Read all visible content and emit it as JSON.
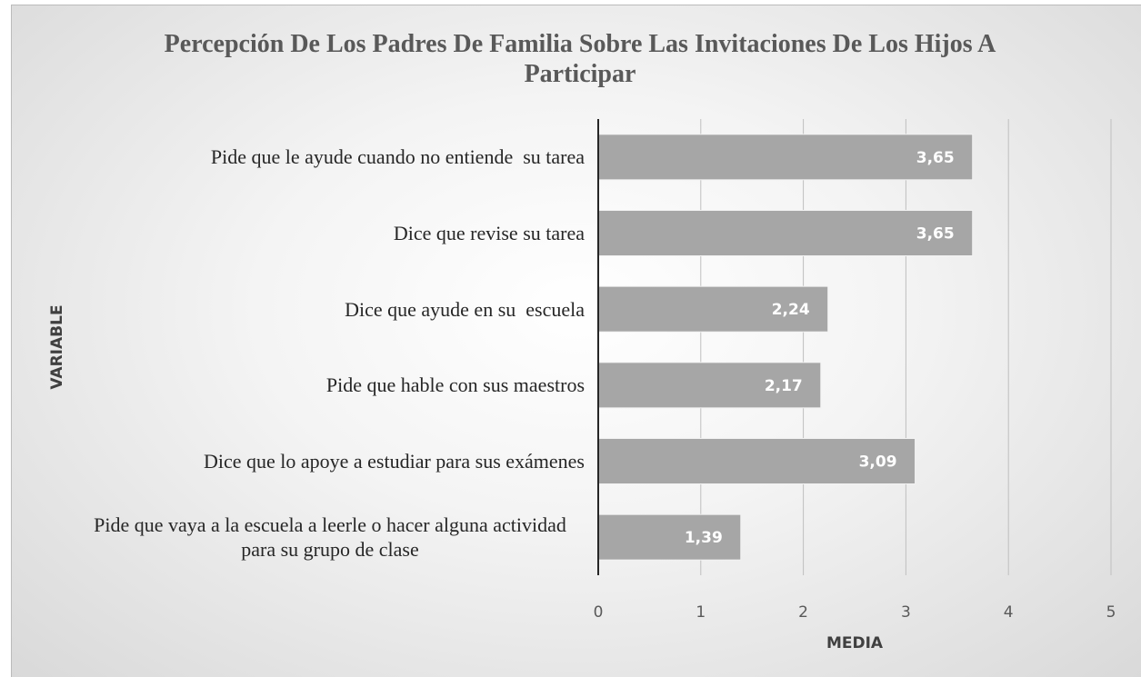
{
  "chart_data": {
    "type": "barh",
    "title": "Percepción De Los Padres De Familia Sobre Las Invitaciones De Los Hijos A Participar",
    "xlabel": "MEDIA",
    "ylabel": "VARIABLE",
    "categories": [
      "Pide que le ayude cuando no entiende  su tarea",
      "Dice que revise su tarea",
      "Dice que ayude en su  escuela",
      "Pide que hable con sus maestros",
      "Dice que lo apoye a estudiar para sus exámenes",
      "Pide que vaya a la escuela a leerle o hacer alguna actividad para su grupo de clase"
    ],
    "values": [
      3.65,
      3.65,
      2.24,
      2.17,
      3.09,
      1.39
    ],
    "value_labels": [
      "3,65",
      "3,65",
      "2,24",
      "2,17",
      "3,09",
      "1,39"
    ],
    "color": "#a6a6a6",
    "xlim": [
      0,
      5
    ],
    "xticks": [
      0,
      1,
      2,
      3,
      4,
      5
    ],
    "grid": true
  }
}
